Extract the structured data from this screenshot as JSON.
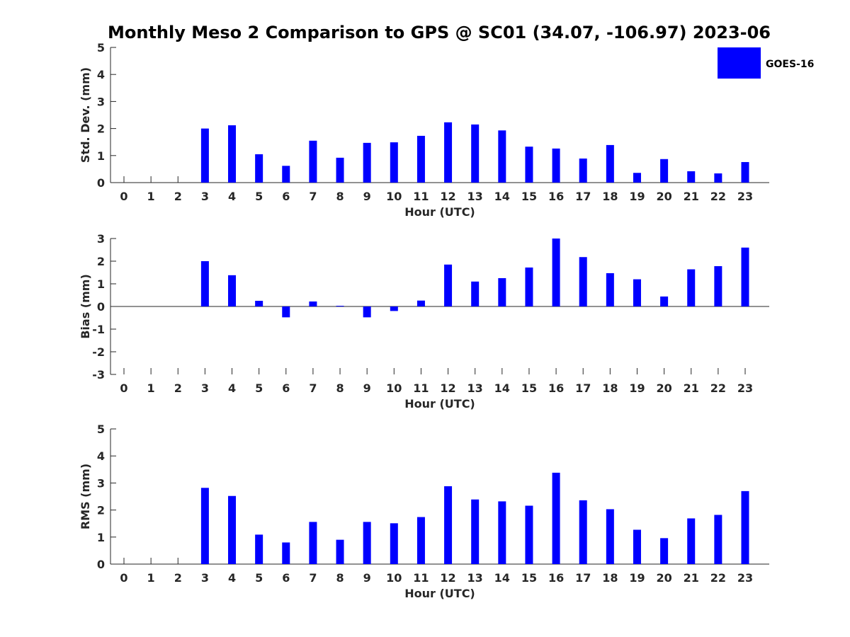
{
  "chart_data": [
    {
      "type": "bar",
      "title": "Monthly Meso 2 Comparison to GPS @ SC01 (34.07, -106.97) 2023-06",
      "xlabel": "Hour (UTC)",
      "ylabel": "Std. Dev. (mm)",
      "ylim": [
        0,
        5
      ],
      "yticks": [
        0,
        1,
        2,
        3,
        4,
        5
      ],
      "categories": [
        "0",
        "1",
        "2",
        "3",
        "4",
        "5",
        "6",
        "7",
        "8",
        "9",
        "10",
        "11",
        "12",
        "13",
        "14",
        "15",
        "16",
        "17",
        "18",
        "19",
        "20",
        "21",
        "22",
        "23"
      ],
      "series": [
        {
          "name": "GOES-16",
          "color": "#0000ff",
          "values": [
            null,
            null,
            null,
            2.0,
            2.12,
            1.05,
            0.62,
            1.55,
            0.92,
            1.47,
            1.49,
            1.73,
            2.23,
            2.15,
            1.93,
            1.33,
            1.26,
            0.89,
            1.39,
            0.36,
            0.87,
            0.42,
            0.34,
            0.76
          ]
        }
      ],
      "legend": {
        "entries": [
          "GOES-16"
        ],
        "placement": "top-right"
      },
      "grid": false
    },
    {
      "type": "bar",
      "title": "",
      "xlabel": "Hour (UTC)",
      "ylabel": "Bias (mm)",
      "ylim": [
        -3,
        3
      ],
      "yticks": [
        -3,
        -2,
        -1,
        0,
        1,
        2,
        3
      ],
      "categories": [
        "0",
        "1",
        "2",
        "3",
        "4",
        "5",
        "6",
        "7",
        "8",
        "9",
        "10",
        "11",
        "12",
        "13",
        "14",
        "15",
        "16",
        "17",
        "18",
        "19",
        "20",
        "21",
        "22",
        "23"
      ],
      "series": [
        {
          "name": "GOES-16",
          "color": "#0000ff",
          "values": [
            null,
            null,
            null,
            2.0,
            1.38,
            0.25,
            -0.48,
            0.22,
            0.03,
            -0.48,
            -0.2,
            0.26,
            1.85,
            1.1,
            1.25,
            1.72,
            3.0,
            2.18,
            1.47,
            1.2,
            0.44,
            1.64,
            1.78,
            2.6
          ]
        }
      ],
      "grid": false
    },
    {
      "type": "bar",
      "title": "",
      "xlabel": "Hour (UTC)",
      "ylabel": "RMS (mm)",
      "ylim": [
        0,
        5
      ],
      "yticks": [
        0,
        1,
        2,
        3,
        4,
        5
      ],
      "categories": [
        "0",
        "1",
        "2",
        "3",
        "4",
        "5",
        "6",
        "7",
        "8",
        "9",
        "10",
        "11",
        "12",
        "13",
        "14",
        "15",
        "16",
        "17",
        "18",
        "19",
        "20",
        "21",
        "22",
        "23"
      ],
      "series": [
        {
          "name": "GOES-16",
          "color": "#0000ff",
          "values": [
            null,
            null,
            null,
            2.82,
            2.52,
            1.09,
            0.8,
            1.56,
            0.9,
            1.56,
            1.51,
            1.74,
            2.88,
            2.39,
            2.32,
            2.16,
            3.38,
            2.36,
            2.03,
            1.27,
            0.96,
            1.69,
            1.82,
            2.7
          ]
        }
      ],
      "grid": false
    }
  ]
}
